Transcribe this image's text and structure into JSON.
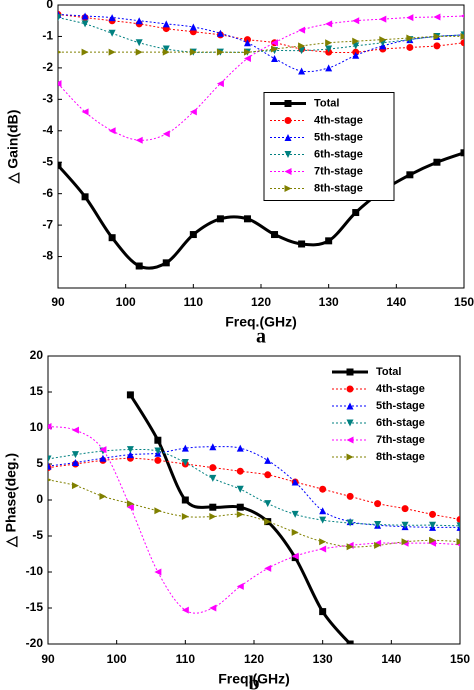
{
  "chart_data": [
    {
      "type": "line",
      "caption": "a",
      "x_label": "Freq.(GHz)",
      "y_label": "△ Gain(dB)",
      "x": [
        90,
        94,
        98,
        102,
        106,
        110,
        114,
        118,
        122,
        126,
        130,
        134,
        138,
        142,
        146,
        150
      ],
      "xlim": [
        90,
        150
      ],
      "xticks": [
        90,
        100,
        110,
        120,
        130,
        140,
        150
      ],
      "ylim": [
        -9,
        0
      ],
      "yticks": [
        0,
        -1,
        -2,
        -3,
        -4,
        -5,
        -6,
        -7,
        -8
      ],
      "legend": "center",
      "series": [
        {
          "name": "Total",
          "color": "#000000",
          "marker": "square",
          "style": "solid",
          "values": [
            -5.1,
            -6.1,
            -7.4,
            -8.3,
            -8.2,
            -7.3,
            -6.8,
            -6.8,
            -7.3,
            -7.6,
            -7.5,
            -6.6,
            -5.9,
            -5.4,
            -5.0,
            -4.7
          ]
        },
        {
          "name": "4th-stage",
          "color": "#ff0000",
          "marker": "circle",
          "style": "dotted",
          "values": [
            -0.3,
            -0.4,
            -0.5,
            -0.6,
            -0.75,
            -0.85,
            -0.95,
            -1.1,
            -1.2,
            -1.4,
            -1.5,
            -1.5,
            -1.4,
            -1.35,
            -1.3,
            -1.2
          ]
        },
        {
          "name": "5th-stage",
          "color": "#0000ff",
          "marker": "triangle-up",
          "style": "dotted",
          "values": [
            -0.3,
            -0.35,
            -0.4,
            -0.5,
            -0.6,
            -0.7,
            -0.9,
            -1.2,
            -1.7,
            -2.1,
            -2.0,
            -1.6,
            -1.3,
            -1.1,
            -1.0,
            -0.95
          ]
        },
        {
          "name": "6th-stage",
          "color": "#008080",
          "marker": "triangle-down",
          "style": "dotted",
          "values": [
            -0.4,
            -0.6,
            -0.9,
            -1.2,
            -1.4,
            -1.5,
            -1.5,
            -1.5,
            -1.45,
            -1.45,
            -1.4,
            -1.3,
            -1.2,
            -1.1,
            -1.0,
            -0.95
          ]
        },
        {
          "name": "7th-stage",
          "color": "#ff00ff",
          "marker": "triangle-left",
          "style": "dotted",
          "values": [
            -2.5,
            -3.4,
            -4.0,
            -4.3,
            -4.1,
            -3.4,
            -2.5,
            -1.7,
            -1.2,
            -0.8,
            -0.6,
            -0.5,
            -0.45,
            -0.4,
            -0.38,
            -0.35
          ]
        },
        {
          "name": "8th-stage",
          "color": "#808000",
          "marker": "triangle-right",
          "style": "dotted",
          "values": [
            -1.5,
            -1.5,
            -1.5,
            -1.5,
            -1.5,
            -1.5,
            -1.5,
            -1.5,
            -1.4,
            -1.3,
            -1.2,
            -1.15,
            -1.1,
            -1.05,
            -1.0,
            -1.0
          ]
        }
      ]
    },
    {
      "type": "line",
      "caption": "b",
      "x_label": "Freq.(GHz)",
      "y_label": "△ Phase(deg.)",
      "x": [
        90,
        94,
        98,
        102,
        106,
        110,
        114,
        118,
        122,
        126,
        130,
        134,
        138,
        142,
        146,
        150
      ],
      "xlim": [
        90,
        150
      ],
      "xticks": [
        90,
        100,
        110,
        120,
        130,
        140,
        150
      ],
      "ylim": [
        -20,
        20
      ],
      "yticks": [
        -20,
        -15,
        -10,
        -5,
        0,
        5,
        10,
        15,
        20
      ],
      "legend": "upper right",
      "series": [
        {
          "name": "Total",
          "color": "#000000",
          "marker": "square",
          "style": "solid",
          "values": [
            null,
            null,
            null,
            14.6,
            8.3,
            0,
            -1,
            -1,
            -3,
            -8,
            -15.5,
            -20,
            null,
            null,
            null,
            null
          ]
        },
        {
          "name": "4th-stage",
          "color": "#ff0000",
          "marker": "circle",
          "style": "dotted",
          "values": [
            4.5,
            5,
            5.5,
            5.8,
            5.5,
            5,
            4.5,
            4,
            3.5,
            2.5,
            1.5,
            0.5,
            -0.5,
            -1.2,
            -2,
            -2.7
          ]
        },
        {
          "name": "5th-stage",
          "color": "#0000ff",
          "marker": "triangle-up",
          "style": "dotted",
          "values": [
            4.7,
            5.2,
            5.8,
            6.3,
            6.5,
            7.2,
            7.4,
            7.2,
            5.5,
            2.5,
            -1.5,
            -3,
            -3.5,
            -3.7,
            -3.8,
            -3.8
          ]
        },
        {
          "name": "6th-stage",
          "color": "#008080",
          "marker": "triangle-down",
          "style": "dotted",
          "values": [
            5.7,
            6.3,
            6.8,
            7,
            6.8,
            5.2,
            3,
            1.5,
            -0.5,
            -2,
            -2.8,
            -3.2,
            -3.4,
            -3.5,
            -3.5,
            -3.6
          ]
        },
        {
          "name": "7th-stage",
          "color": "#ff00ff",
          "marker": "triangle-left",
          "style": "dotted",
          "values": [
            10.2,
            9.7,
            7,
            -1,
            -10,
            -15.3,
            -15,
            -12,
            -9.5,
            -7.8,
            -6.8,
            -6.3,
            -6,
            -6,
            -6,
            -6.2
          ]
        },
        {
          "name": "8th-stage",
          "color": "#808000",
          "marker": "triangle-right",
          "style": "dotted",
          "values": [
            2.8,
            2,
            0.5,
            -0.5,
            -1.5,
            -2.3,
            -2.3,
            -2,
            -3,
            -4.5,
            -5.8,
            -6.5,
            -6.3,
            -5.8,
            -5.6,
            -5.8
          ]
        }
      ]
    }
  ]
}
